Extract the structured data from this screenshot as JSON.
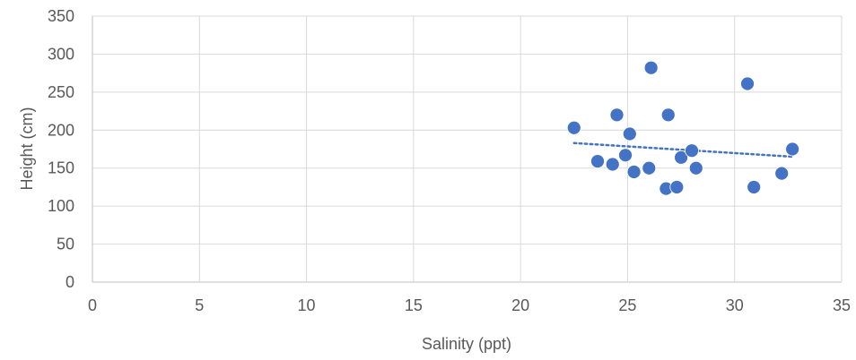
{
  "chart_data": {
    "type": "scatter",
    "xlabel": "Salinity (ppt)",
    "ylabel": "Height (cm)",
    "xlim": [
      0,
      35
    ],
    "ylim": [
      0,
      350
    ],
    "xticks": [
      "0",
      "5",
      "10",
      "15",
      "20",
      "25",
      "30",
      "35"
    ],
    "yticks": [
      "0",
      "50",
      "100",
      "150",
      "200",
      "250",
      "300",
      "350"
    ],
    "grid": "vertical and horizontal major gridlines",
    "legend": "none",
    "colors": {
      "marker": "#4472C4",
      "trendline": "#4472C4",
      "grid": "#D9D9D9",
      "text": "#595959"
    },
    "series": [
      {
        "marker": "circle",
        "points": [
          {
            "x": 22.5,
            "y": 203
          },
          {
            "x": 23.6,
            "y": 159
          },
          {
            "x": 24.3,
            "y": 155
          },
          {
            "x": 24.5,
            "y": 220
          },
          {
            "x": 24.9,
            "y": 167
          },
          {
            "x": 25.1,
            "y": 195
          },
          {
            "x": 25.3,
            "y": 145
          },
          {
            "x": 26.0,
            "y": 150
          },
          {
            "x": 26.1,
            "y": 282
          },
          {
            "x": 26.8,
            "y": 123
          },
          {
            "x": 26.9,
            "y": 220
          },
          {
            "x": 27.3,
            "y": 125
          },
          {
            "x": 27.5,
            "y": 164
          },
          {
            "x": 28.0,
            "y": 173
          },
          {
            "x": 28.2,
            "y": 150
          },
          {
            "x": 30.6,
            "y": 261
          },
          {
            "x": 30.9,
            "y": 125
          },
          {
            "x": 32.2,
            "y": 143
          },
          {
            "x": 32.7,
            "y": 175
          }
        ],
        "trendline": {
          "type": "linear",
          "style": "dotted",
          "from": {
            "x": 22.5,
            "y": 183
          },
          "to": {
            "x": 32.7,
            "y": 165
          }
        }
      }
    ]
  }
}
